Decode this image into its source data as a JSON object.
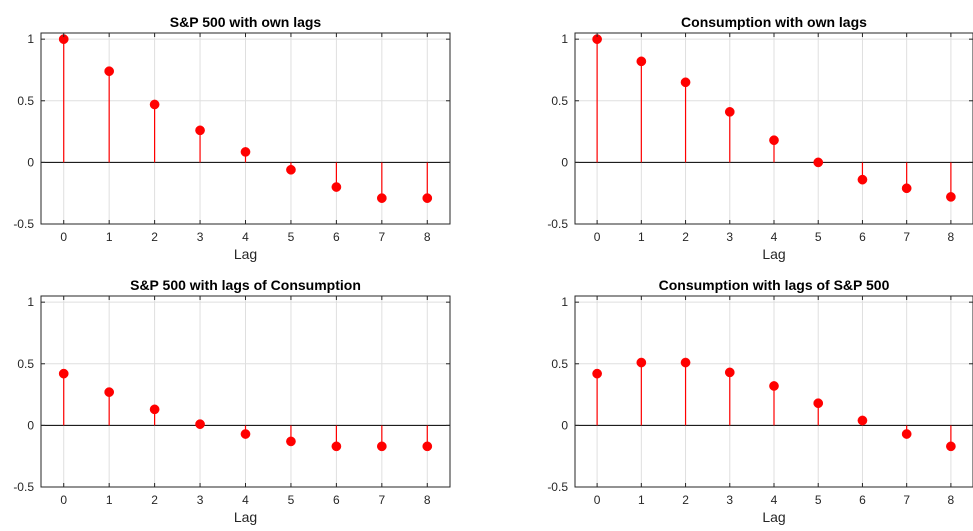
{
  "chart_data": [
    {
      "type": "stem",
      "title": "S&P 500 with own lags",
      "xlabel": "Lag",
      "ylabel": "",
      "x": [
        0,
        1,
        2,
        3,
        4,
        5,
        6,
        7,
        8
      ],
      "values": [
        1.0,
        0.74,
        0.47,
        0.26,
        0.085,
        -0.06,
        -0.2,
        -0.29,
        -0.29
      ],
      "xlim": [
        -0.5,
        8.5
      ],
      "ylim": [
        -0.5,
        1.05
      ],
      "xticks": [
        "0",
        "1",
        "2",
        "3",
        "4",
        "5",
        "6",
        "7",
        "8"
      ],
      "yticks": [
        {
          "value": 1,
          "label": "1"
        },
        {
          "value": 0.5,
          "label": "0.5"
        },
        {
          "value": 0,
          "label": "0"
        },
        {
          "value": -0.5,
          "label": "-0.5"
        }
      ],
      "grid": true,
      "color": "#ff0000"
    },
    {
      "type": "stem",
      "title": "Consumption with own lags",
      "xlabel": "Lag",
      "ylabel": "",
      "x": [
        0,
        1,
        2,
        3,
        4,
        5,
        6,
        7,
        8
      ],
      "values": [
        1.0,
        0.82,
        0.65,
        0.41,
        0.18,
        0.0,
        -0.14,
        -0.21,
        -0.28
      ],
      "xlim": [
        -0.5,
        8.5
      ],
      "ylim": [
        -0.5,
        1.05
      ],
      "xticks": [
        "0",
        "1",
        "2",
        "3",
        "4",
        "5",
        "6",
        "7",
        "8"
      ],
      "yticks": [
        {
          "value": 1,
          "label": "1"
        },
        {
          "value": 0.5,
          "label": "0.5"
        },
        {
          "value": 0,
          "label": "0"
        },
        {
          "value": -0.5,
          "label": "-0.5"
        }
      ],
      "grid": true,
      "color": "#ff0000"
    },
    {
      "type": "stem",
      "title": "S&P 500 with lags of Consumption",
      "xlabel": "Lag",
      "ylabel": "",
      "x": [
        0,
        1,
        2,
        3,
        4,
        5,
        6,
        7,
        8
      ],
      "values": [
        0.42,
        0.27,
        0.13,
        0.01,
        -0.07,
        -0.13,
        -0.17,
        -0.17,
        -0.17
      ],
      "xlim": [
        -0.5,
        8.5
      ],
      "ylim": [
        -0.5,
        1.05
      ],
      "xticks": [
        "0",
        "1",
        "2",
        "3",
        "4",
        "5",
        "6",
        "7",
        "8"
      ],
      "yticks": [
        {
          "value": 1,
          "label": "1"
        },
        {
          "value": 0.5,
          "label": "0.5"
        },
        {
          "value": 0,
          "label": "0"
        },
        {
          "value": -0.5,
          "label": "-0.5"
        }
      ],
      "grid": true,
      "color": "#ff0000"
    },
    {
      "type": "stem",
      "title": "Consumption with lags of S&P 500",
      "xlabel": "Lag",
      "ylabel": "",
      "x": [
        0,
        1,
        2,
        3,
        4,
        5,
        6,
        7,
        8
      ],
      "values": [
        0.42,
        0.51,
        0.51,
        0.43,
        0.32,
        0.18,
        0.04,
        -0.07,
        -0.17
      ],
      "xlim": [
        -0.5,
        8.5
      ],
      "ylim": [
        -0.5,
        1.05
      ],
      "xticks": [
        "0",
        "1",
        "2",
        "3",
        "4",
        "5",
        "6",
        "7",
        "8"
      ],
      "yticks": [
        {
          "value": 1,
          "label": "1"
        },
        {
          "value": 0.5,
          "label": "0.5"
        },
        {
          "value": 0,
          "label": "0"
        },
        {
          "value": -0.5,
          "label": "-0.5"
        }
      ],
      "grid": true,
      "color": "#ff0000"
    }
  ],
  "colors": {
    "stem": "#ff0000",
    "grid": "#dfdfdf",
    "axis": "#262626",
    "zero_line": "#000000"
  }
}
